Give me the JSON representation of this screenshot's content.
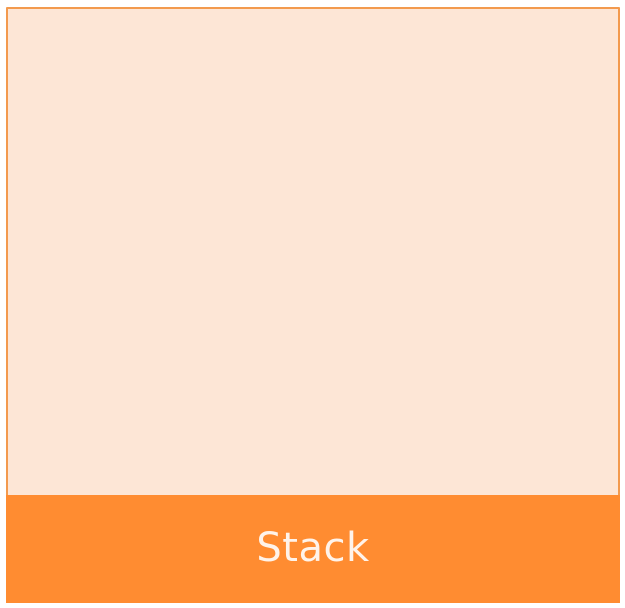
{
  "stack": {
    "label": "Stack"
  },
  "colors": {
    "body_fill": "#fde6d6",
    "border": "#f39a4e",
    "footer_fill": "#ff8c31",
    "label_text": "#fff3ea"
  }
}
